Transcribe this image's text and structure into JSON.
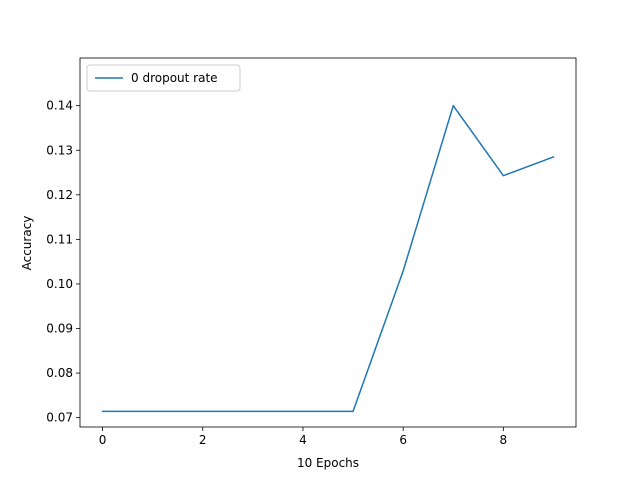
{
  "chart_data": {
    "type": "line",
    "title": "",
    "xlabel": "10 Epochs",
    "ylabel": "Accuracy",
    "xlim": [
      -0.45,
      9.45
    ],
    "ylim": [
      0.0679,
      0.1507
    ],
    "xticks": [
      0,
      2,
      4,
      6,
      8
    ],
    "xtick_labels": [
      "0",
      "2",
      "4",
      "6",
      "8"
    ],
    "yticks": [
      0.07,
      0.08,
      0.09,
      0.1,
      0.11,
      0.12,
      0.13,
      0.14
    ],
    "ytick_labels": [
      "0.07",
      "0.08",
      "0.09",
      "0.10",
      "0.11",
      "0.12",
      "0.13",
      "0.14"
    ],
    "grid": false,
    "legend_position": "top-left",
    "series": [
      {
        "name": "0 dropout rate",
        "color": "#1f77b4",
        "x": [
          0,
          1,
          2,
          3,
          4,
          5,
          6,
          7,
          8,
          9
        ],
        "y": [
          0.0714,
          0.0714,
          0.0714,
          0.0714,
          0.0714,
          0.0714,
          0.1029,
          0.14,
          0.1243,
          0.1285
        ]
      }
    ]
  }
}
